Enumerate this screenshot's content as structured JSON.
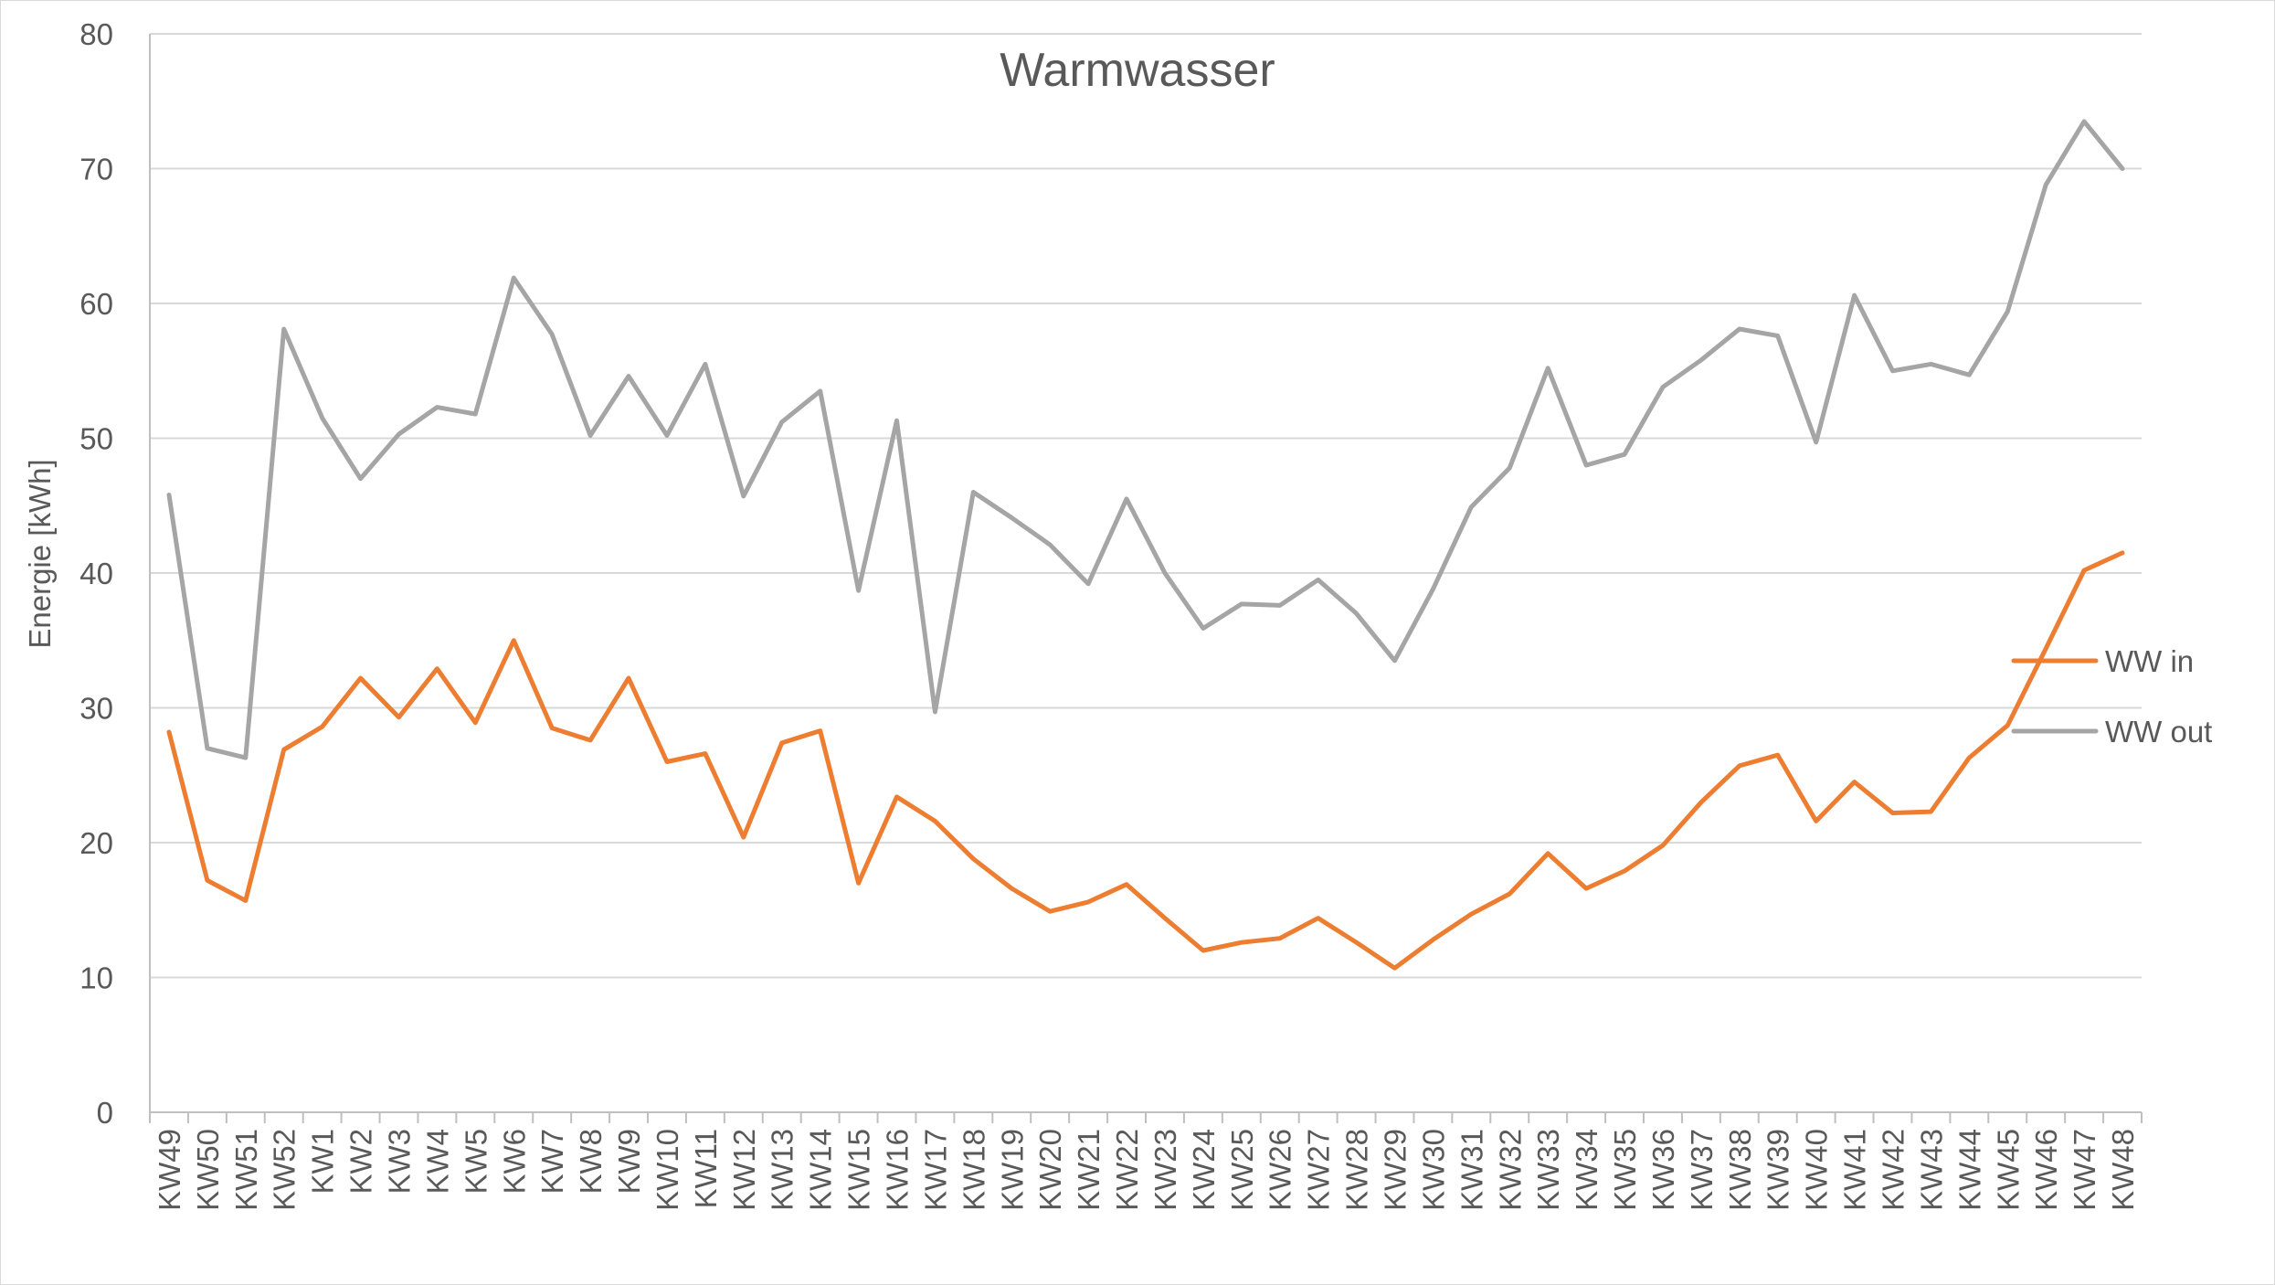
{
  "chart_data": {
    "type": "line",
    "title": "Warmwasser",
    "xlabel": "",
    "ylabel": "Energie [kWh]",
    "ylim": [
      0,
      80
    ],
    "yticks": [
      0,
      10,
      20,
      30,
      40,
      50,
      60,
      70,
      80
    ],
    "grid": true,
    "legend": "right",
    "categories": [
      "KW49",
      "KW50",
      "KW51",
      "KW52",
      "KW1",
      "KW2",
      "KW3",
      "KW4",
      "KW5",
      "KW6",
      "KW7",
      "KW8",
      "KW9",
      "KW10",
      "KW11",
      "KW12",
      "KW13",
      "KW14",
      "KW15",
      "KW16",
      "KW17",
      "KW18",
      "KW19",
      "KW20",
      "KW21",
      "KW22",
      "KW23",
      "KW24",
      "KW25",
      "KW26",
      "KW27",
      "KW28",
      "KW29",
      "KW30",
      "KW31",
      "KW32",
      "KW33",
      "KW34",
      "KW35",
      "KW36",
      "KW37",
      "KW38",
      "KW39",
      "KW40",
      "KW41",
      "KW42",
      "KW43",
      "KW44",
      "KW45",
      "KW46",
      "KW47",
      "KW48"
    ],
    "series": [
      {
        "name": "WW in",
        "color": "#ED7D31",
        "values": [
          28.2,
          17.2,
          15.7,
          26.9,
          28.6,
          32.2,
          29.3,
          32.9,
          28.9,
          35.0,
          28.5,
          27.6,
          32.2,
          26.0,
          26.6,
          20.4,
          27.4,
          28.3,
          17.0,
          23.4,
          21.6,
          18.8,
          16.6,
          14.9,
          15.6,
          16.9,
          14.4,
          12.0,
          12.6,
          12.9,
          14.4,
          12.6,
          10.7,
          12.8,
          14.7,
          16.2,
          19.2,
          16.6,
          17.9,
          19.8,
          23.0,
          25.7,
          26.5,
          21.6,
          24.5,
          22.2,
          22.3,
          26.3,
          28.7,
          34.4,
          40.2,
          41.5
        ]
      },
      {
        "name": "WW out",
        "color": "#A5A5A5",
        "values": [
          45.8,
          27.0,
          26.3,
          58.1,
          51.5,
          47.0,
          50.3,
          52.3,
          51.8,
          61.9,
          57.7,
          50.2,
          54.6,
          50.2,
          55.5,
          45.7,
          51.2,
          53.5,
          38.7,
          51.3,
          29.7,
          46.0,
          44.1,
          42.1,
          39.2,
          45.5,
          40.0,
          35.9,
          37.7,
          37.6,
          39.5,
          37.0,
          33.5,
          38.8,
          44.9,
          47.8,
          55.2,
          48.0,
          48.8,
          53.8,
          55.8,
          58.1,
          57.6,
          49.7,
          60.6,
          55.0,
          55.5,
          54.7,
          59.4,
          68.8,
          73.5,
          70.0
        ]
      }
    ]
  }
}
